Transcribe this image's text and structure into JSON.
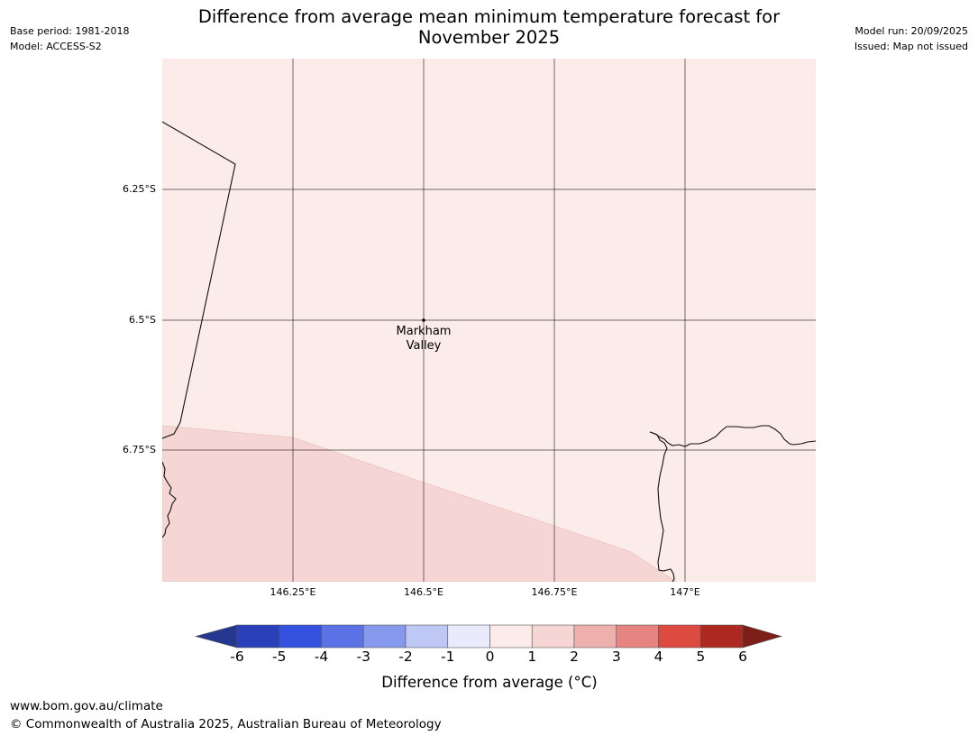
{
  "header": {
    "base_period": "Base period: 1981-2018",
    "model": "Model: ACCESS-S2",
    "model_run": "Model run: 20/09/2025",
    "issued": "Issued: Map not issued",
    "title_line1": "Difference from average mean minimum temperature forecast for",
    "title_line2": "November 2025"
  },
  "map": {
    "latitude_labels": [
      "6.25°S",
      "6.5°S",
      "6.75°S"
    ],
    "longitude_labels": [
      "146.25°E",
      "146.5°E",
      "146.75°E",
      "147°E"
    ],
    "place": {
      "name_line1": "Markham",
      "name_line2": "Valley"
    },
    "fill_colors": {
      "band_0_to_1": "#fbebe9",
      "band_1_to_2": "#f5d6d4"
    }
  },
  "colorbar": {
    "ticks": [
      "-6",
      "-5",
      "-4",
      "-3",
      "-2",
      "-1",
      "0",
      "1",
      "2",
      "3",
      "4",
      "5",
      "6"
    ],
    "label": "Difference from average (°C)",
    "colors": [
      "#263790",
      "#2a3fba",
      "#3451e0",
      "#5b71e6",
      "#8799ec",
      "#bfc7f5",
      "#e9ebfc",
      "#fbebe9",
      "#f5d6d4",
      "#eeb0ac",
      "#e58480",
      "#dd4a3f",
      "#ac2820",
      "#7d1f18"
    ]
  },
  "footer": {
    "url": "www.bom.gov.au/climate",
    "copyright": "© Commonwealth of Australia 2025, Australian Bureau of Meteorology"
  }
}
